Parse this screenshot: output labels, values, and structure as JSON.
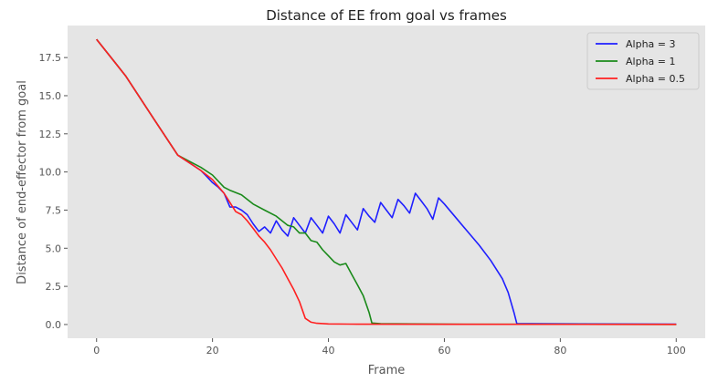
{
  "chart_data": {
    "type": "line",
    "title": "Distance of EE from goal vs frames",
    "xlabel": "Frame",
    "ylabel": "Distance of end-effector from goal",
    "xlim": [
      -5,
      105
    ],
    "ylim": [
      -0.9,
      19.6
    ],
    "xticks": [
      "0",
      "20",
      "40",
      "60",
      "80",
      "100"
    ],
    "yticks": [
      "0.0",
      "2.5",
      "5.0",
      "7.5",
      "10.0",
      "12.5",
      "15.0",
      "17.5"
    ],
    "grid": false,
    "legend_position": "top-right",
    "series": [
      {
        "name": "Alpha = 3",
        "color": "#1f1fff",
        "points": [
          [
            0,
            18.7
          ],
          [
            5,
            16.3
          ],
          [
            10,
            13.4
          ],
          [
            14,
            11.1
          ],
          [
            16,
            10.6
          ],
          [
            18,
            10.1
          ],
          [
            19,
            9.7
          ],
          [
            20,
            9.3
          ],
          [
            21,
            9.0
          ],
          [
            22,
            8.6
          ],
          [
            23,
            7.7
          ],
          [
            24,
            7.7
          ],
          [
            25,
            7.5
          ],
          [
            26,
            7.2
          ],
          [
            27,
            6.6
          ],
          [
            28,
            6.1
          ],
          [
            29,
            6.4
          ],
          [
            30,
            6.0
          ],
          [
            31,
            6.8
          ],
          [
            32,
            6.2
          ],
          [
            33,
            5.8
          ],
          [
            34,
            7.0
          ],
          [
            35,
            6.5
          ],
          [
            36,
            6.0
          ],
          [
            37,
            7.0
          ],
          [
            38,
            6.5
          ],
          [
            39,
            6.0
          ],
          [
            40,
            7.1
          ],
          [
            41,
            6.6
          ],
          [
            42,
            6.0
          ],
          [
            43,
            7.2
          ],
          [
            44,
            6.7
          ],
          [
            45,
            6.2
          ],
          [
            46,
            7.6
          ],
          [
            47,
            7.1
          ],
          [
            48,
            6.7
          ],
          [
            49,
            8.0
          ],
          [
            50,
            7.5
          ],
          [
            51,
            7.0
          ],
          [
            52,
            8.2
          ],
          [
            53,
            7.8
          ],
          [
            54,
            7.3
          ],
          [
            55,
            8.6
          ],
          [
            56,
            8.1
          ],
          [
            57,
            7.6
          ],
          [
            58,
            6.9
          ],
          [
            59,
            8.3
          ],
          [
            60,
            7.9
          ],
          [
            62,
            7.0
          ],
          [
            64,
            6.1
          ],
          [
            66,
            5.2
          ],
          [
            68,
            4.2
          ],
          [
            70,
            3.0
          ],
          [
            71,
            2.1
          ],
          [
            72,
            0.8
          ],
          [
            72.5,
            0.05
          ],
          [
            75,
            0.05
          ],
          [
            100,
            0.02
          ]
        ]
      },
      {
        "name": "Alpha = 1",
        "color": "#1a8a1a",
        "points": [
          [
            0,
            18.7
          ],
          [
            5,
            16.3
          ],
          [
            10,
            13.4
          ],
          [
            14,
            11.1
          ],
          [
            16,
            10.7
          ],
          [
            18,
            10.3
          ],
          [
            20,
            9.8
          ],
          [
            22,
            9.0
          ],
          [
            23,
            8.8
          ],
          [
            25,
            8.5
          ],
          [
            27,
            7.9
          ],
          [
            29,
            7.5
          ],
          [
            31,
            7.1
          ],
          [
            32,
            6.8
          ],
          [
            33,
            6.5
          ],
          [
            34,
            6.4
          ],
          [
            35,
            6.0
          ],
          [
            36,
            6.0
          ],
          [
            37,
            5.5
          ],
          [
            38,
            5.4
          ],
          [
            39,
            4.9
          ],
          [
            40,
            4.5
          ],
          [
            41,
            4.1
          ],
          [
            42,
            3.9
          ],
          [
            43,
            4.0
          ],
          [
            44,
            3.3
          ],
          [
            45,
            2.6
          ],
          [
            46,
            1.9
          ],
          [
            47,
            0.8
          ],
          [
            47.5,
            0.1
          ],
          [
            49,
            0.05
          ],
          [
            60,
            0.02
          ],
          [
            100,
            0.01
          ]
        ]
      },
      {
        "name": "Alpha = 0.5",
        "color": "#ff2020",
        "points": [
          [
            0,
            18.7
          ],
          [
            5,
            16.3
          ],
          [
            10,
            13.4
          ],
          [
            14,
            11.1
          ],
          [
            16,
            10.6
          ],
          [
            18,
            10.1
          ],
          [
            20,
            9.5
          ],
          [
            22,
            8.6
          ],
          [
            23,
            8.0
          ],
          [
            24,
            7.4
          ],
          [
            25,
            7.2
          ],
          [
            26,
            6.8
          ],
          [
            27,
            6.3
          ],
          [
            28,
            5.8
          ],
          [
            29,
            5.4
          ],
          [
            30,
            4.9
          ],
          [
            31,
            4.3
          ],
          [
            32,
            3.7
          ],
          [
            33,
            3.0
          ],
          [
            34,
            2.3
          ],
          [
            35,
            1.5
          ],
          [
            36,
            0.4
          ],
          [
            37,
            0.15
          ],
          [
            38,
            0.08
          ],
          [
            40,
            0.04
          ],
          [
            45,
            0.02
          ],
          [
            100,
            0.01
          ]
        ]
      }
    ]
  }
}
